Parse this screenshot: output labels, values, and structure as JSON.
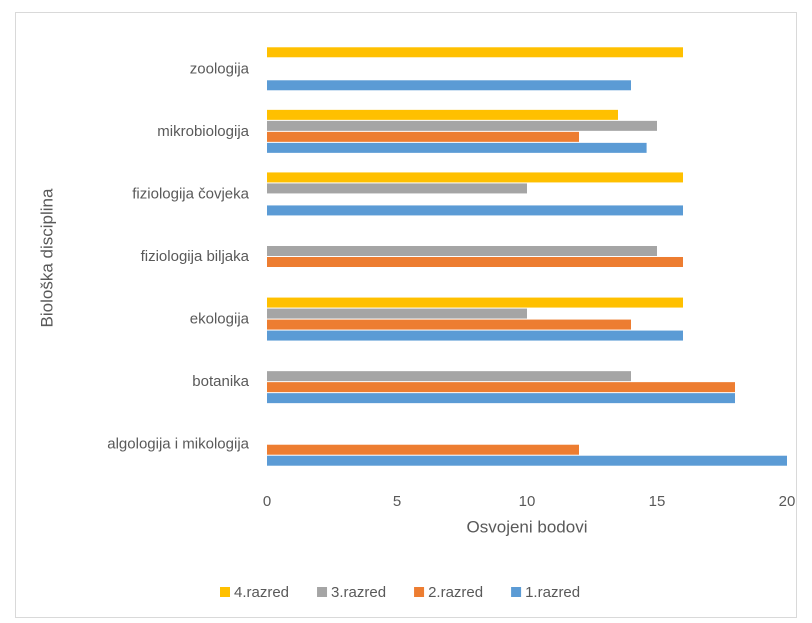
{
  "chart_data": {
    "type": "hbar",
    "xlabel": "Osvojeni bodovi",
    "ylabel": "Biološka disciplina",
    "categories": [
      "algologija i mikologija",
      "botanika",
      "ekologija",
      "fiziologija biljaka",
      "fiziologija čovjeka",
      "mikrobiologija",
      "zoologija"
    ],
    "series": [
      {
        "name": "1.razred",
        "color": "#5b9bd5",
        "values": [
          20,
          18,
          16,
          null,
          16,
          14.6,
          14
        ]
      },
      {
        "name": "2.razred",
        "color": "#ed7d31",
        "values": [
          12,
          18,
          14,
          16,
          null,
          12,
          null
        ]
      },
      {
        "name": "3.razred",
        "color": "#a5a5a5",
        "values": [
          null,
          14,
          10,
          15,
          10,
          15,
          null
        ]
      },
      {
        "name": "4.razred",
        "color": "#ffc000",
        "values": [
          null,
          null,
          16,
          null,
          16,
          13.5,
          16
        ]
      }
    ],
    "xlim": [
      0,
      20
    ],
    "xticks": [
      0,
      5,
      10,
      15,
      20
    ],
    "grid": false,
    "legend": "bottom"
  }
}
